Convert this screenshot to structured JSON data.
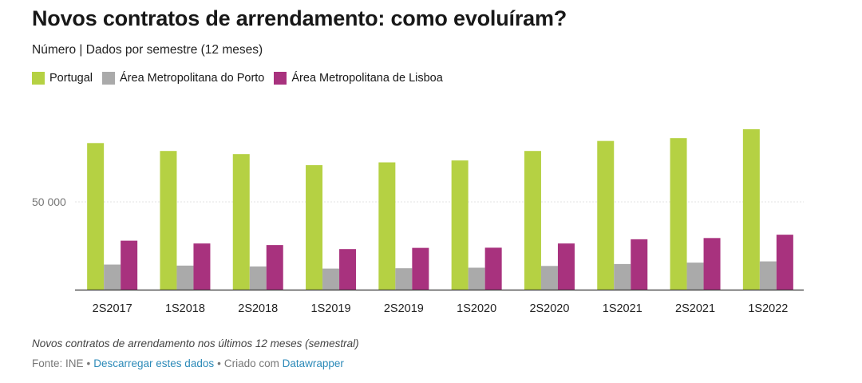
{
  "header": {
    "title": "Novos contratos de arrendamento: como evoluíram?",
    "subtitle": "Número | Dados por semestre (12 meses)"
  },
  "colors": {
    "portugal": "#b5d143",
    "porto": "#aaaaaa",
    "lisboa": "#a8327e",
    "link": "#2c8ab8"
  },
  "legend": [
    {
      "label": "Portugal",
      "color": "#b5d143"
    },
    {
      "label": "Área Metropolitana do Porto",
      "color": "#aaaaaa"
    },
    {
      "label": "Área Metropolitana de Lisboa",
      "color": "#a8327e"
    }
  ],
  "chart_data": {
    "type": "bar",
    "categories": [
      "2S2017",
      "1S2018",
      "2S2018",
      "1S2019",
      "2S2019",
      "1S2020",
      "2S2020",
      "1S2021",
      "2S2021",
      "1S2022"
    ],
    "series": [
      {
        "name": "Portugal",
        "color": "#b5d143",
        "values": [
          83500,
          79000,
          77200,
          70900,
          72500,
          73600,
          79000,
          84700,
          86300,
          91400
        ]
      },
      {
        "name": "Área Metropolitana do Porto",
        "color": "#aaaaaa",
        "values": [
          14300,
          13700,
          13200,
          12000,
          12200,
          12500,
          13500,
          14600,
          15400,
          16100
        ]
      },
      {
        "name": "Área Metropolitana de Lisboa",
        "color": "#a8327e",
        "values": [
          27900,
          26300,
          25400,
          23100,
          23800,
          23900,
          26300,
          28700,
          29400,
          31300
        ]
      }
    ],
    "yticks": [
      50000
    ],
    "ytick_labels": [
      "50 000"
    ],
    "ylim": [
      0,
      100000
    ],
    "xlabel": "",
    "ylabel": "",
    "grid": true
  },
  "notes": "Novos contratos de arrendamento nos últimos 12 meses (semestral)",
  "footer": {
    "source": "Fonte: INE",
    "download_link": "Descarregar estes dados",
    "created_with": "Criado com",
    "tool_link": "Datawrapper"
  }
}
